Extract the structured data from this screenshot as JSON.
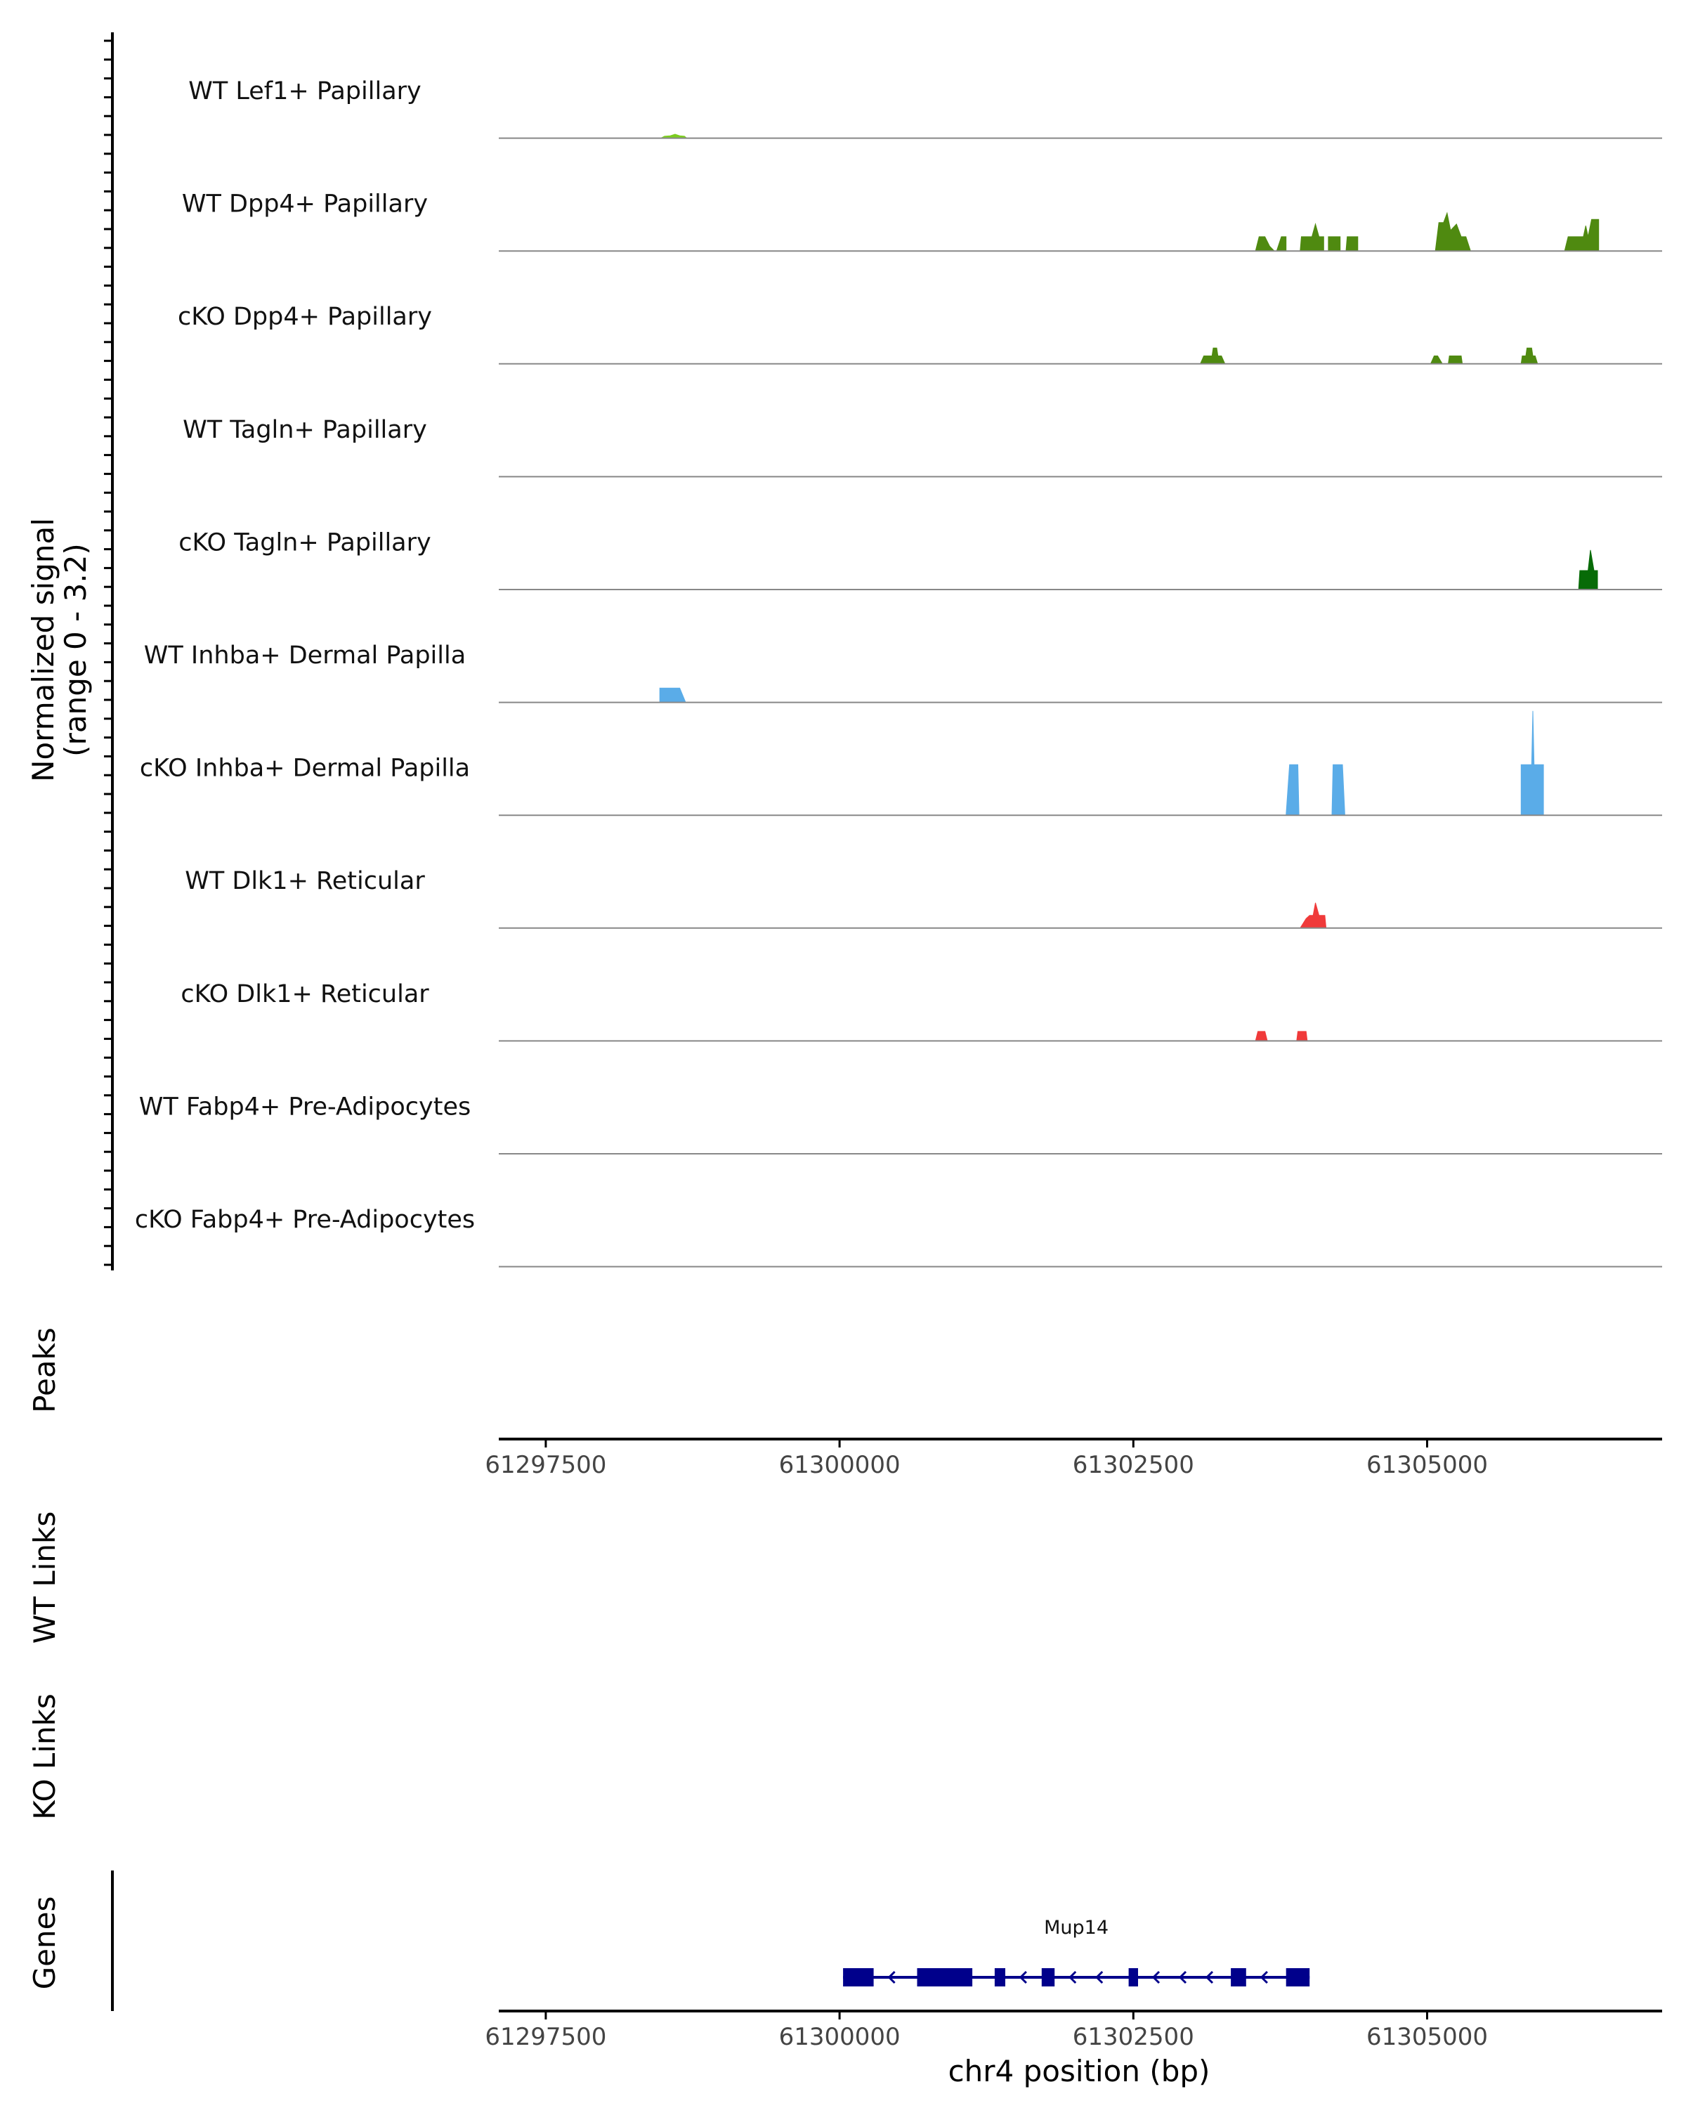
{
  "chart_data": {
    "type": "area",
    "title": "",
    "region": {
      "chrom": "chr4",
      "start": 61297100,
      "end": 61307000
    },
    "ylabel": [
      "Normalized signal",
      "(range 0 - 3.2)"
    ],
    "xlabel": "chr4 position (bp)",
    "ylim": [
      0,
      3.2
    ],
    "x_ticks": [
      61297500,
      61300000,
      61302500,
      61305000
    ],
    "x_tick_labels": [
      "61297500",
      "61300000",
      "61302500",
      "61305000"
    ],
    "tracks": [
      {
        "name": "WT Lef1+ Papillary",
        "color": "#7ccd1f",
        "points": [
          [
            61298480,
            0
          ],
          [
            61298510,
            0.12
          ],
          [
            61298560,
            0.15
          ],
          [
            61298600,
            0.25
          ],
          [
            61298640,
            0.15
          ],
          [
            61298680,
            0.12
          ],
          [
            61298700,
            0
          ]
        ]
      },
      {
        "name": "WT Dpp4+ Papillary",
        "color": "#4f8a10",
        "points": [
          [
            61303540,
            0
          ],
          [
            61303570,
            0.9
          ],
          [
            61303620,
            0.9
          ],
          [
            61303660,
            0.3
          ],
          [
            61303700,
            0
          ],
          [
            61303720,
            0
          ],
          [
            61303760,
            0.9
          ],
          [
            61303800,
            0.9
          ],
          [
            61303800,
            0
          ],
          [
            61303920,
            0
          ],
          [
            61303930,
            0.9
          ],
          [
            61304020,
            0.9
          ],
          [
            61304050,
            1.7
          ],
          [
            61304080,
            0.9
          ],
          [
            61304120,
            0.9
          ],
          [
            61304120,
            0
          ],
          [
            61304160,
            0
          ],
          [
            61304160,
            0.9
          ],
          [
            61304260,
            0.9
          ],
          [
            61304260,
            0
          ],
          [
            61304310,
            0
          ],
          [
            61304320,
            0.9
          ],
          [
            61304410,
            0.9
          ],
          [
            61304410,
            0
          ],
          [
            61305070,
            0
          ],
          [
            61305100,
            1.8
          ],
          [
            61305140,
            1.8
          ],
          [
            61305170,
            2.4
          ],
          [
            61305200,
            1.3
          ],
          [
            61305250,
            1.7
          ],
          [
            61305290,
            0.9
          ],
          [
            61305330,
            0.9
          ],
          [
            61305370,
            0
          ],
          [
            61306170,
            0
          ],
          [
            61306200,
            0.9
          ],
          [
            61306330,
            0.9
          ],
          [
            61306350,
            1.6
          ],
          [
            61306370,
            0.9
          ],
          [
            61306400,
            2.0
          ],
          [
            61306460,
            2.0
          ],
          [
            61306460,
            0
          ]
        ]
      },
      {
        "name": "cKO Dpp4+ Papillary",
        "color": "#4f8a10",
        "points": [
          [
            61303070,
            0
          ],
          [
            61303100,
            0.5
          ],
          [
            61303170,
            0.5
          ],
          [
            61303180,
            1.0
          ],
          [
            61303210,
            1.0
          ],
          [
            61303220,
            0.5
          ],
          [
            61303250,
            0.5
          ],
          [
            61303280,
            0
          ],
          [
            61305030,
            0
          ],
          [
            61305060,
            0.5
          ],
          [
            61305090,
            0.5
          ],
          [
            61305130,
            0
          ],
          [
            61305180,
            0
          ],
          [
            61305190,
            0.5
          ],
          [
            61305290,
            0.5
          ],
          [
            61305300,
            0
          ],
          [
            61305800,
            0
          ],
          [
            61305810,
            0.5
          ],
          [
            61305840,
            0.5
          ],
          [
            61305850,
            1.0
          ],
          [
            61305890,
            1.0
          ],
          [
            61305900,
            0.5
          ],
          [
            61305920,
            0.5
          ],
          [
            61305940,
            0
          ]
        ]
      },
      {
        "name": "WT Tagln+ Papillary",
        "color": "#3c7a0b",
        "points": []
      },
      {
        "name": "cKO Tagln+ Papillary",
        "color": "#076b07",
        "points": [
          [
            61306290,
            0
          ],
          [
            61306300,
            1.2
          ],
          [
            61306370,
            1.2
          ],
          [
            61306390,
            2.5
          ],
          [
            61306420,
            1.2
          ],
          [
            61306450,
            1.2
          ],
          [
            61306450,
            0
          ]
        ]
      },
      {
        "name": "WT Inhba+ Dermal Papilla",
        "color": "#5aace8",
        "points": [
          [
            61298470,
            0
          ],
          [
            61298470,
            0.9
          ],
          [
            61298640,
            0.9
          ],
          [
            61298690,
            0
          ]
        ]
      },
      {
        "name": "cKO Inhba+ Dermal Papilla",
        "color": "#5aace8",
        "points": [
          [
            61303800,
            0
          ],
          [
            61303830,
            3.2
          ],
          [
            61303900,
            3.2
          ],
          [
            61303910,
            0
          ],
          [
            61304190,
            0
          ],
          [
            61304200,
            3.2
          ],
          [
            61304280,
            3.2
          ],
          [
            61304300,
            0
          ],
          [
            61305800,
            0
          ],
          [
            61305800,
            3.2
          ],
          [
            61305890,
            3.2
          ],
          [
            61305900,
            6.6
          ],
          [
            61305910,
            3.2
          ],
          [
            61305990,
            3.2
          ],
          [
            61305990,
            0
          ]
        ]
      },
      {
        "name": "WT Dlk1+ Reticular",
        "color": "#f03a3a",
        "points": [
          [
            61303920,
            0
          ],
          [
            61303970,
            0.6
          ],
          [
            61304000,
            0.8
          ],
          [
            61304030,
            0.8
          ],
          [
            61304050,
            1.6
          ],
          [
            61304080,
            0.8
          ],
          [
            61304130,
            0.8
          ],
          [
            61304140,
            0
          ]
        ]
      },
      {
        "name": "cKO Dlk1+ Reticular",
        "color": "#f03a3a",
        "points": [
          [
            61303540,
            0
          ],
          [
            61303560,
            0.6
          ],
          [
            61303620,
            0.6
          ],
          [
            61303640,
            0
          ],
          [
            61303890,
            0
          ],
          [
            61303900,
            0.6
          ],
          [
            61303970,
            0.6
          ],
          [
            61303980,
            0
          ]
        ]
      },
      {
        "name": "WT Fabp4+ Pre-Adipocytes",
        "color": "#999999",
        "points": []
      },
      {
        "name": "cKO Fabp4+ Pre-Adipocytes",
        "color": "#999999",
        "points": []
      }
    ],
    "panels": {
      "peaks_label": "Peaks",
      "wt_links_label": "WT Links",
      "ko_links_label": "KO Links",
      "genes_label": "Genes"
    },
    "gene": {
      "name": "Mup14",
      "color": "#00008b",
      "strand": "-",
      "start": 61300030,
      "end": 61304000,
      "exons": [
        [
          61300030,
          61300290
        ],
        [
          61300660,
          61301130
        ],
        [
          61301320,
          61301410
        ],
        [
          61301720,
          61301830
        ],
        [
          61302460,
          61302540
        ],
        [
          61303330,
          61303460
        ],
        [
          61303800,
          61304000
        ]
      ]
    }
  }
}
